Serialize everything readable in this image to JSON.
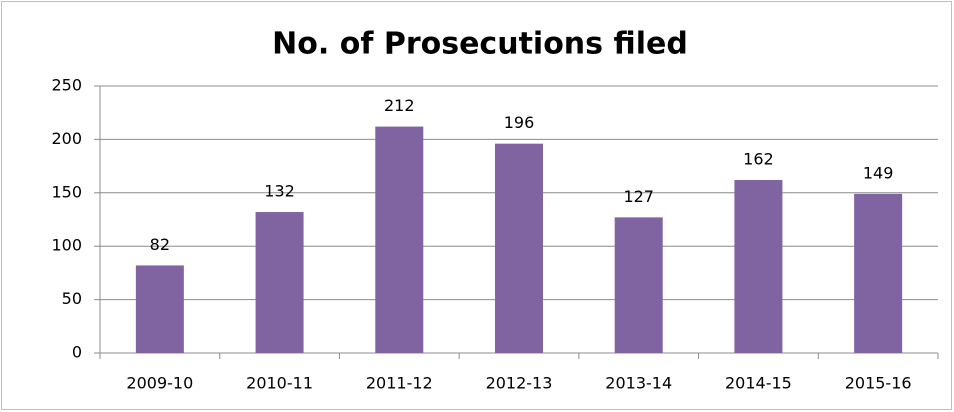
{
  "chart_data": {
    "type": "bar",
    "title": "No. of Prosecutions filed",
    "categories": [
      "2009-10",
      "2010-11",
      "2011-12",
      "2012-13",
      "2013-14",
      "2014-15",
      "2015-16"
    ],
    "values": [
      82,
      132,
      212,
      196,
      127,
      162,
      149
    ],
    "color": "#8064a2",
    "ylim": [
      0,
      250
    ],
    "yticks": [
      0,
      50,
      100,
      150,
      200,
      250
    ],
    "grid": true
  }
}
